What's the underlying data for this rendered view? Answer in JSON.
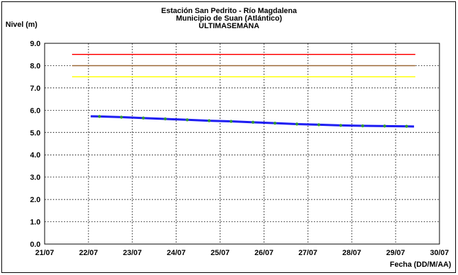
{
  "chart_data": {
    "type": "line",
    "title": "Estación San Pedrito - Río Magdalena",
    "subtitle": "Municipio de Suan (Atlántico)",
    "subtitle2": "ULTIMASEMANA",
    "ylabel": "Nivel (m)",
    "xlabel": "Fecha (DD/M/AA)",
    "ylim": [
      0,
      9
    ],
    "yticks": [
      "0.0",
      "1.0",
      "2.0",
      "3.0",
      "4.0",
      "5.0",
      "6.0",
      "7.0",
      "8.0",
      "9.0"
    ],
    "xticks": [
      "21/07",
      "22/07",
      "23/07",
      "24/07",
      "25/07",
      "26/07",
      "27/07",
      "28/07",
      "29/07",
      "30/07"
    ],
    "grid": true,
    "thresholds": [
      {
        "value": 8.5,
        "color": "#ff0000"
      },
      {
        "value": 8.0,
        "color": "#996633"
      },
      {
        "value": 7.5,
        "color": "#ffff00"
      }
    ],
    "threshold_x_range": [
      21.625,
      29.45
    ],
    "series": [
      {
        "color": "#0000ff",
        "marker_color": "#339933",
        "x": [
          22.05,
          22.25,
          22.75,
          23.25,
          23.75,
          24.25,
          24.75,
          25.25,
          25.75,
          26.25,
          26.75,
          27.25,
          27.75,
          28.25,
          28.75,
          29.25,
          29.42
        ],
        "y": [
          5.73,
          5.72,
          5.69,
          5.65,
          5.61,
          5.57,
          5.53,
          5.5,
          5.46,
          5.42,
          5.38,
          5.35,
          5.32,
          5.3,
          5.29,
          5.28,
          5.27
        ]
      }
    ]
  }
}
